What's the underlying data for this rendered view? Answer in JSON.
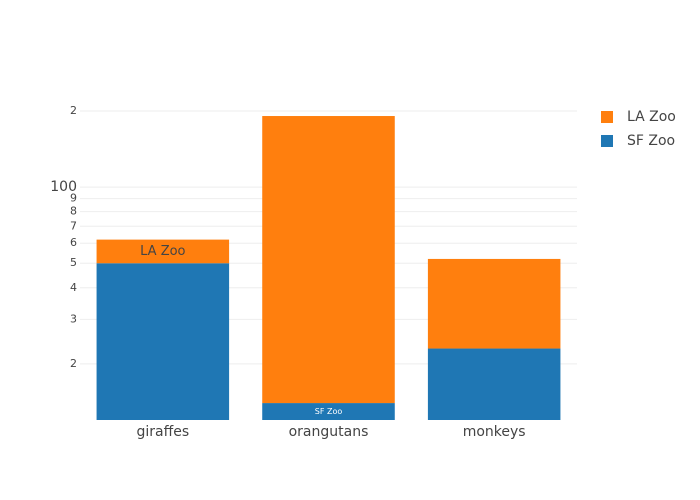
{
  "chart_data": {
    "type": "bar",
    "barmode": "stack",
    "log_y": true,
    "grid": true,
    "categories": [
      "giraffes",
      "orangutans",
      "monkeys"
    ],
    "series": [
      {
        "name": "SF Zoo",
        "color": "#1f77b4",
        "values": [
          50,
          14,
          23
        ]
      },
      {
        "name": "LA Zoo",
        "color": "#ff7f0e",
        "values": [
          12,
          177,
          29
        ]
      }
    ],
    "ylim": [
      12,
      221
    ],
    "yticks": [
      {
        "value": 20,
        "label": "2"
      },
      {
        "value": 30,
        "label": "3"
      },
      {
        "value": 40,
        "label": "4"
      },
      {
        "value": 50,
        "label": "5"
      },
      {
        "value": 60,
        "label": "6"
      },
      {
        "value": 70,
        "label": "7"
      },
      {
        "value": 80,
        "label": "8"
      },
      {
        "value": 90,
        "label": "9"
      },
      100,
      {
        "value": 200,
        "label": "2"
      }
    ],
    "legend": "top-right"
  }
}
